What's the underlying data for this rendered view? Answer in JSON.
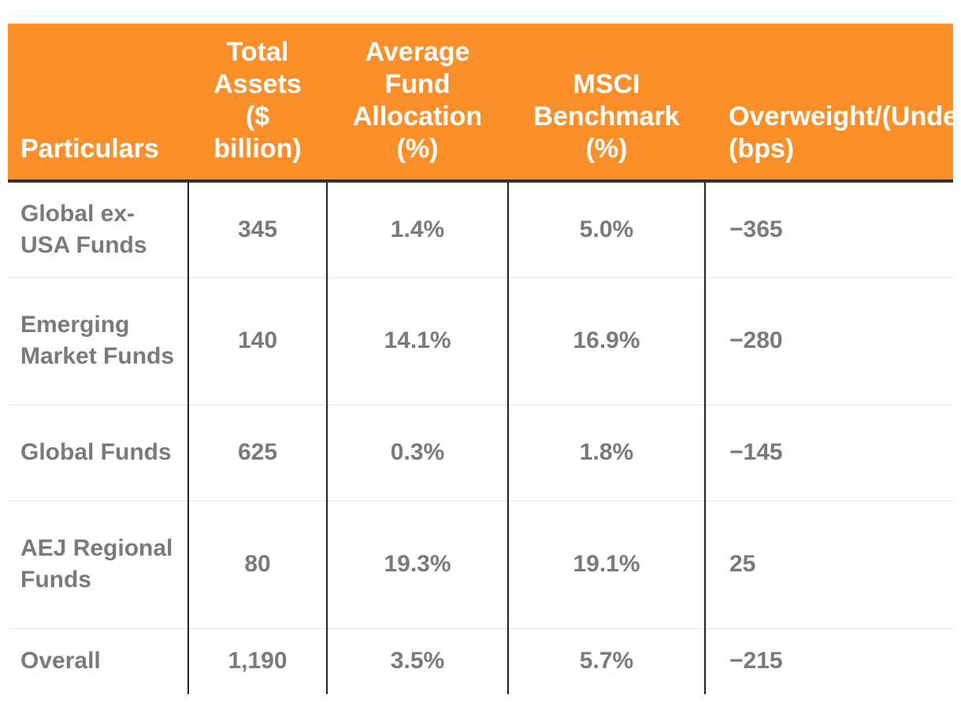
{
  "chart_data": {
    "type": "table",
    "columns": [
      "Particulars",
      "Total Assets ($ billion)",
      "Average Fund Allocation (%)",
      "MSCI Benchmark (%)",
      "Overweight/(Underweight) (bps)"
    ],
    "header_lines": {
      "c0": [
        "Particulars"
      ],
      "c1": [
        "Total",
        "Assets",
        "($",
        "billion)"
      ],
      "c2": [
        "Average",
        "Fund",
        "Allocation",
        "(%)"
      ],
      "c3": [
        "MSCI",
        "Benchmark",
        "(%)"
      ],
      "c4": [
        "Overweight/(Underweight)",
        "(bps)"
      ]
    },
    "rows": [
      {
        "particulars": "Global ex-USA Funds",
        "total_assets": "345",
        "avg_allocation": "1.4%",
        "msci_benchmark": "5.0%",
        "over_under_bps": "−365"
      },
      {
        "particulars": "Emerging Market Funds",
        "total_assets": "140",
        "avg_allocation": "14.1%",
        "msci_benchmark": "16.9%",
        "over_under_bps": "−280"
      },
      {
        "particulars": "Global Funds",
        "total_assets": "625",
        "avg_allocation": "0.3%",
        "msci_benchmark": "1.8%",
        "over_under_bps": "−145"
      },
      {
        "particulars": "AEJ Regional Funds",
        "total_assets": "80",
        "avg_allocation": "19.3%",
        "msci_benchmark": "19.1%",
        "over_under_bps": "25"
      },
      {
        "particulars": "Overall",
        "total_assets": "1,190",
        "avg_allocation": "3.5%",
        "msci_benchmark": "5.7%",
        "over_under_bps": "−215"
      }
    ]
  },
  "colors": {
    "header_background": "#fb8f2a",
    "header_text": "#ffffff",
    "body_text": "#7a7a7a",
    "grid_line": "#222222"
  }
}
